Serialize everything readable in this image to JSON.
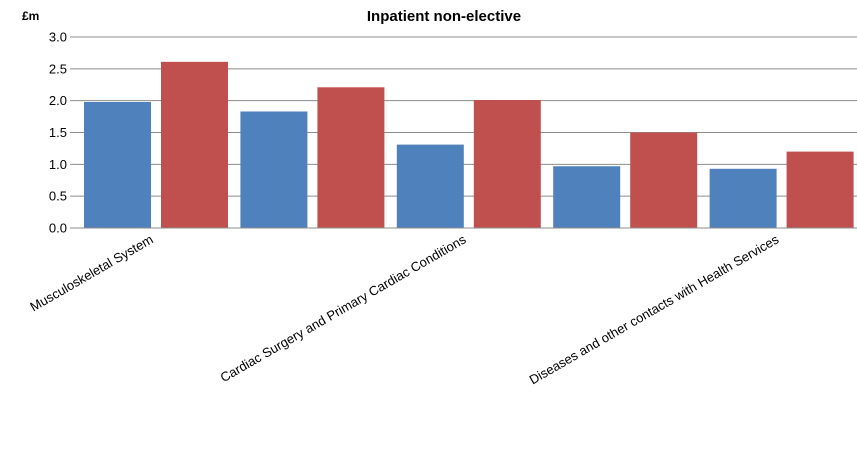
{
  "chart_data": {
    "type": "bar",
    "title": "Inpatient non-elective",
    "ylabel": "£m",
    "xlabel": "",
    "ylim": [
      0,
      3.0
    ],
    "yticks": [
      "0.0",
      "0.5",
      "1.0",
      "1.5",
      "2.0",
      "2.5",
      "3.0"
    ],
    "categories": [
      "Musculoskeletal System",
      "",
      "Cardiac Surgery and Primary Cardiac Conditions",
      "",
      "Diseases and other contacts with Health Services"
    ],
    "series": [
      {
        "values": [
          1.98,
          1.83,
          1.31,
          0.97,
          0.93
        ],
        "color": "#4f81bd"
      },
      {
        "values": [
          2.61,
          2.21,
          2.01,
          1.5,
          1.2
        ],
        "color": "#c0504d"
      }
    ],
    "grid": true,
    "legend": "none"
  }
}
